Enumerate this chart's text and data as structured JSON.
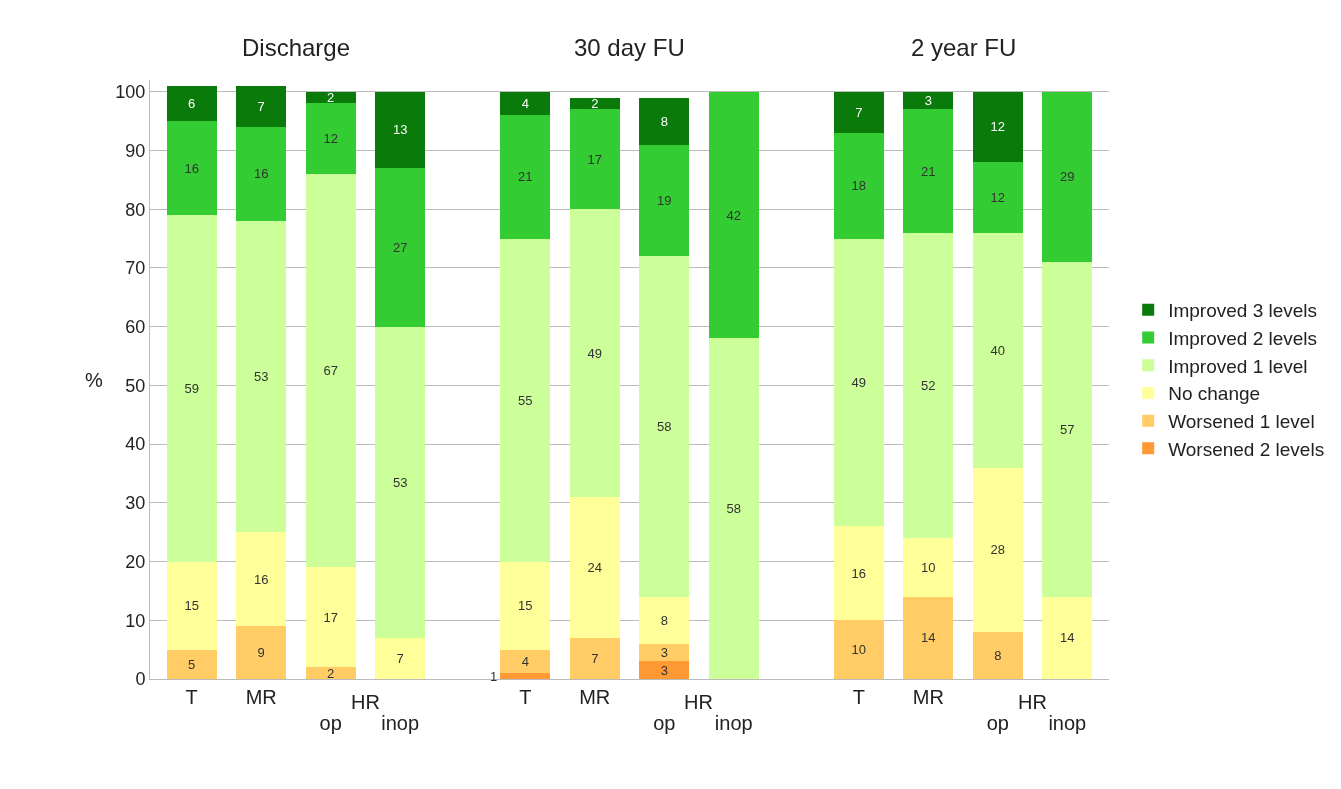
{
  "chart_data": {
    "type": "bar",
    "stacked": true,
    "ylabel": "%",
    "categories": [
      "T",
      "MR",
      "op",
      "inop",
      "T",
      "MR",
      "op",
      "inop",
      "T",
      "MR",
      "op",
      "inop"
    ],
    "annotations": [
      "Discharge",
      "30 day FU",
      "2 year FU",
      "HR",
      "HR",
      "HR"
    ],
    "series": [
      {
        "name": "Worsened 2 levels",
        "color": "#ff9933",
        "values": [
          null,
          null,
          null,
          null,
          1,
          null,
          3,
          null,
          null,
          null,
          null,
          null
        ]
      },
      {
        "name": "Worsened 1 level",
        "color": "#ffcc66",
        "values": [
          5,
          9,
          2,
          null,
          4,
          7,
          3,
          null,
          10,
          14,
          8,
          null
        ]
      },
      {
        "name": "No change",
        "color": "#ffff99",
        "values": [
          15,
          16,
          17,
          7,
          15,
          24,
          8,
          null,
          16,
          10,
          28,
          14
        ]
      },
      {
        "name": "Improved 1 level",
        "color": "#ccff99",
        "values": [
          59,
          53,
          67,
          53,
          55,
          49,
          58,
          58,
          49,
          52,
          40,
          57
        ]
      },
      {
        "name": "Improved 2 levels",
        "color": "#33cc33",
        "values": [
          16,
          16,
          12,
          27,
          21,
          17,
          19,
          42,
          18,
          21,
          12,
          29
        ]
      },
      {
        "name": "Improved 3 levels",
        "color": "#0a7a0a",
        "values": [
          6,
          7,
          2,
          13,
          4,
          2,
          8,
          null,
          7,
          3,
          12,
          null
        ]
      }
    ],
    "ylim": [
      0,
      102
    ],
    "yticks": [
      0,
      10,
      20,
      30,
      40,
      50,
      60,
      70,
      80,
      90,
      100
    ],
    "grid": "y",
    "legend": "right",
    "data_labels": true
  }
}
